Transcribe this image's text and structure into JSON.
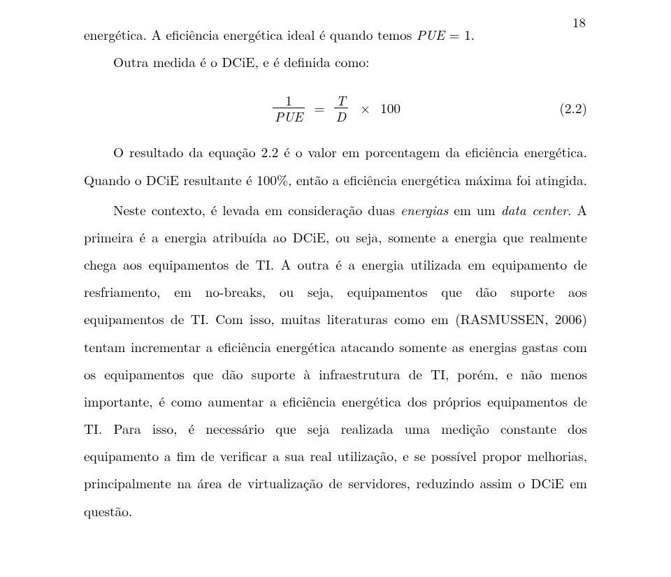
{
  "page_number": "18",
  "p1_a": "energética. A eficiência energética ideal é quando temos ",
  "p1_b_it": "PUE",
  "p1_c": " = 1.",
  "p2": "Outra medida é o DCiE, e é definida como:",
  "eq": {
    "lhs_num": "1",
    "lhs_den_it": "PUE",
    "eq_sign": "=",
    "rhs_num_it": "T",
    "rhs_den_it": "D",
    "times": "×",
    "hundred": "100",
    "number": "(2.2)"
  },
  "p3": "O resultado da equação 2.2 é o valor em porcentagem da eficiência energética. Quando o DCiE resultante é 100%, então a eficiência energética máxima foi atingida.",
  "p4_a": "Neste contexto, é levada em consideração duas ",
  "p4_b_it": "energias",
  "p4_c": " em um ",
  "p4_d_it": "data center",
  "p4_e": ". A primeira é a energia atribuída ao DCiE, ou seja, somente a energia que realmente chega aos equipamentos de TI. A outra é a energia utilizada em equipamento de resfriamento, em no-breaks, ou seja, equipamentos que dão suporte aos equipamentos de TI. Com isso, muitas literaturas como em (RASMUSSEN, 2006) tentam incrementar a eficiência energética atacando somente as energias gastas com os equipamentos que dão suporte à infraestrutura de TI, porém, e não menos importante, é como aumentar a eficiência energética dos próprios equipamentos de TI. Para isso, é necessário que seja realizada uma medição constante dos equipamento a fim de verificar a sua real utilização, e se possível propor melhorias, principalmente na área de virtualização de servidores, reduzindo assim o DCiE em questão."
}
